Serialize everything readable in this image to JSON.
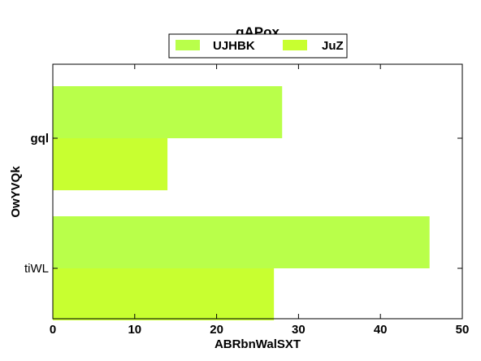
{
  "chart_data": {
    "type": "bar",
    "orientation": "horizontal",
    "title": "gAPox",
    "xlabel": "ABRbnWalSXT",
    "ylabel": "OwYVQk",
    "categories": [
      "gql",
      "tiWL"
    ],
    "series": [
      {
        "name": "UJHBK",
        "values": [
          28,
          46
        ],
        "color": "#b9ff4a"
      },
      {
        "name": "JuZ",
        "values": [
          14,
          27
        ],
        "color": "#c8ff30"
      }
    ],
    "xlim": [
      0,
      50
    ],
    "xticks": [
      "0",
      "10",
      "20",
      "30",
      "40",
      "50"
    ],
    "grid": false,
    "legend_position": "top-center"
  }
}
